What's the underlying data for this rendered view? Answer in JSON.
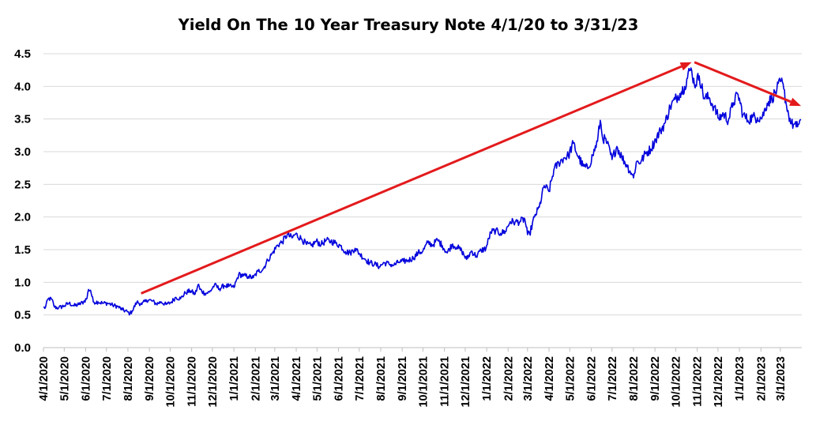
{
  "chart_data": {
    "type": "line",
    "title": "Yield On The 10 Year Treasury Note 4/1/20 to 3/31/23",
    "xlabel": "",
    "ylabel": "",
    "ylim": [
      0,
      4.5
    ],
    "yticks": [
      "0.0",
      "0.5",
      "1.0",
      "1.5",
      "2.0",
      "2.5",
      "3.0",
      "3.5",
      "4.0",
      "4.5"
    ],
    "x_tick_labels": [
      "4/1/2020",
      "5/1/2020",
      "6/1/2020",
      "7/1/2020",
      "8/1/2020",
      "9/1/2020",
      "10/1/2020",
      "11/1/2020",
      "12/1/2020",
      "1/1/2021",
      "2/1/2021",
      "3/1/2021",
      "4/1/2021",
      "5/1/2021",
      "6/1/2021",
      "7/1/2021",
      "8/1/2021",
      "9/1/2021",
      "10/1/2021",
      "11/1/2021",
      "12/1/2021",
      "1/1/2022",
      "2/1/2022",
      "3/1/2022",
      "4/1/2022",
      "5/1/2022",
      "6/1/2022",
      "7/1/2022",
      "8/1/2022",
      "9/1/2022",
      "10/1/2022",
      "11/1/2022",
      "12/1/2022",
      "1/1/2023",
      "2/1/2023",
      "3/1/2023"
    ],
    "grid": "horizontal",
    "legend": "none",
    "colors": {
      "series": "#0000dd",
      "arrows": "#e31a1c",
      "grid": "#d9d9d9",
      "axis": "#bfbfbf"
    },
    "series": [
      {
        "x": [
          "4/1/2020",
          "4/3/2020",
          "4/8/2020",
          "4/13/2020",
          "4/17/2020",
          "4/23/2020",
          "5/1/2020",
          "5/8/2020",
          "5/15/2020",
          "5/22/2020",
          "5/29/2020",
          "6/3/2020",
          "6/5/2020",
          "6/8/2020",
          "6/12/2020",
          "6/19/2020",
          "6/26/2020",
          "7/3/2020",
          "7/10/2020",
          "7/17/2020",
          "7/24/2020",
          "7/31/2020",
          "8/4/2020",
          "8/7/2020",
          "8/14/2020",
          "8/21/2020",
          "8/28/2020",
          "9/4/2020",
          "9/11/2020",
          "9/18/2020",
          "9/25/2020",
          "10/2/2020",
          "10/9/2020",
          "10/16/2020",
          "10/23/2020",
          "10/30/2020",
          "11/6/2020",
          "11/11/2020",
          "11/13/2020",
          "11/20/2020",
          "11/27/2020",
          "12/4/2020",
          "12/11/2020",
          "12/18/2020",
          "12/25/2020",
          "1/1/2021",
          "1/8/2021",
          "1/15/2021",
          "1/22/2021",
          "1/29/2021",
          "2/5/2021",
          "2/12/2021",
          "2/19/2021",
          "2/26/2021",
          "3/5/2021",
          "3/12/2021",
          "3/19/2021",
          "3/26/2021",
          "3/31/2021",
          "4/9/2021",
          "4/16/2021",
          "4/23/2021",
          "4/30/2021",
          "5/7/2021",
          "5/14/2021",
          "5/21/2021",
          "5/28/2021",
          "6/4/2021",
          "6/11/2021",
          "6/18/2021",
          "6/25/2021",
          "7/2/2021",
          "7/9/2021",
          "7/16/2021",
          "7/23/2021",
          "7/30/2021",
          "8/6/2021",
          "8/13/2021",
          "8/20/2021",
          "8/27/2021",
          "9/3/2021",
          "9/10/2021",
          "9/17/2021",
          "9/24/2021",
          "10/1/2021",
          "10/8/2021",
          "10/15/2021",
          "10/22/2021",
          "10/29/2021",
          "11/5/2021",
          "11/12/2021",
          "11/19/2021",
          "11/26/2021",
          "12/3/2021",
          "12/10/2021",
          "12/17/2021",
          "12/24/2021",
          "12/31/2021",
          "1/7/2022",
          "1/14/2022",
          "1/21/2022",
          "1/28/2022",
          "2/4/2022",
          "2/11/2022",
          "2/18/2022",
          "2/25/2022",
          "3/1/2022",
          "3/4/2022",
          "3/11/2022",
          "3/18/2022",
          "3/25/2022",
          "4/1/2022",
          "4/8/2022",
          "4/15/2022",
          "4/22/2022",
          "4/29/2022",
          "5/6/2022",
          "5/13/2022",
          "5/20/2022",
          "5/27/2022",
          "6/3/2022",
          "6/10/2022",
          "6/14/2022",
          "6/17/2022",
          "6/24/2022",
          "7/1/2022",
          "7/8/2022",
          "7/15/2022",
          "7/22/2022",
          "7/29/2022",
          "8/1/2022",
          "8/5/2022",
          "8/12/2022",
          "8/19/2022",
          "8/26/2022",
          "9/2/2022",
          "9/9/2022",
          "9/16/2022",
          "9/23/2022",
          "9/30/2022",
          "10/7/2022",
          "10/14/2022",
          "10/21/2022",
          "10/24/2022",
          "10/28/2022",
          "11/4/2022",
          "11/11/2022",
          "11/18/2022",
          "11/25/2022",
          "12/2/2022",
          "12/9/2022",
          "12/16/2022",
          "12/23/2022",
          "12/30/2022",
          "1/6/2023",
          "1/13/2023",
          "1/20/2023",
          "1/27/2023",
          "2/3/2023",
          "2/10/2023",
          "2/17/2023",
          "2/24/2023",
          "3/2/2023",
          "3/6/2023",
          "3/10/2023",
          "3/13/2023",
          "3/17/2023",
          "3/24/2023",
          "3/31/2023"
        ],
        "y": [
          0.62,
          0.6,
          0.75,
          0.74,
          0.62,
          0.61,
          0.64,
          0.68,
          0.64,
          0.66,
          0.7,
          0.76,
          0.89,
          0.88,
          0.7,
          0.7,
          0.68,
          0.68,
          0.65,
          0.63,
          0.58,
          0.55,
          0.52,
          0.56,
          0.7,
          0.66,
          0.73,
          0.72,
          0.67,
          0.7,
          0.66,
          0.69,
          0.77,
          0.75,
          0.84,
          0.87,
          0.82,
          0.97,
          0.89,
          0.83,
          0.85,
          0.96,
          0.9,
          0.95,
          0.94,
          0.92,
          1.12,
          1.1,
          1.09,
          1.07,
          1.17,
          1.2,
          1.34,
          1.45,
          1.57,
          1.62,
          1.73,
          1.68,
          1.74,
          1.66,
          1.58,
          1.56,
          1.63,
          1.58,
          1.64,
          1.63,
          1.6,
          1.56,
          1.47,
          1.45,
          1.52,
          1.43,
          1.36,
          1.3,
          1.28,
          1.24,
          1.3,
          1.28,
          1.26,
          1.31,
          1.32,
          1.34,
          1.37,
          1.45,
          1.48,
          1.61,
          1.57,
          1.65,
          1.56,
          1.45,
          1.58,
          1.54,
          1.48,
          1.35,
          1.48,
          1.4,
          1.49,
          1.52,
          1.77,
          1.79,
          1.75,
          1.78,
          1.93,
          1.92,
          1.93,
          1.97,
          1.73,
          1.74,
          2.0,
          2.15,
          2.48,
          2.39,
          2.72,
          2.83,
          2.9,
          2.94,
          3.13,
          2.93,
          2.78,
          2.74,
          2.94,
          3.16,
          3.48,
          3.23,
          3.13,
          2.88,
          3.08,
          2.92,
          2.8,
          2.67,
          2.6,
          2.84,
          2.85,
          2.98,
          3.04,
          3.19,
          3.32,
          3.45,
          3.69,
          3.8,
          3.89,
          4.0,
          4.24,
          4.25,
          4.02,
          4.16,
          3.82,
          3.83,
          3.69,
          3.51,
          3.58,
          3.48,
          3.75,
          3.88,
          3.57,
          3.48,
          3.53,
          3.52,
          3.53,
          3.74,
          3.82,
          3.95,
          4.08,
          3.96,
          3.7,
          3.57,
          3.43,
          3.38,
          3.49
        ]
      }
    ],
    "annotations": [
      {
        "type": "arrow",
        "from": {
          "x": "8/20/2020",
          "y": 0.83
        },
        "to": {
          "x": "10/24/2022",
          "y": 4.37
        }
      },
      {
        "type": "arrow",
        "from": {
          "x": "10/28/2022",
          "y": 4.37
        },
        "to": {
          "x": "3/31/2023",
          "y": 3.7
        }
      }
    ]
  }
}
